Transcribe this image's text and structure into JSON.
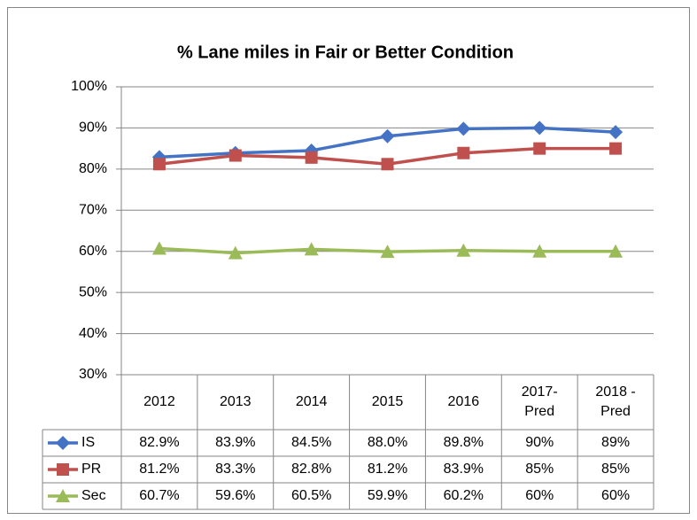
{
  "chart_data": {
    "type": "line",
    "title": "% Lane miles in Fair or Better Condition",
    "categories": [
      "2012",
      "2013",
      "2014",
      "2015",
      "2016",
      "2017- Pred",
      "2018 - Pred"
    ],
    "series": [
      {
        "name": "IS",
        "color": "#4472c4",
        "marker": "diamond",
        "values": [
          82.9,
          83.9,
          84.5,
          88.0,
          89.8,
          90,
          89
        ],
        "value_labels": [
          "82.9%",
          "83.9%",
          "84.5%",
          "88.0%",
          "89.8%",
          "90%",
          "89%"
        ]
      },
      {
        "name": "PR",
        "color": "#c0504d",
        "marker": "square",
        "values": [
          81.2,
          83.3,
          82.8,
          81.2,
          83.9,
          85,
          85
        ],
        "value_labels": [
          "81.2%",
          "83.3%",
          "82.8%",
          "81.2%",
          "83.9%",
          "85%",
          "85%"
        ]
      },
      {
        "name": "Sec",
        "color": "#9bbb59",
        "marker": "triangle",
        "values": [
          60.7,
          59.6,
          60.5,
          59.9,
          60.2,
          60,
          60
        ],
        "value_labels": [
          "60.7%",
          "59.6%",
          "60.5%",
          "59.9%",
          "60.2%",
          "60%",
          "60%"
        ]
      }
    ],
    "ylim": [
      30,
      100
    ],
    "yticks": [
      {
        "value": 30,
        "label": "30%"
      },
      {
        "value": 40,
        "label": "40%"
      },
      {
        "value": 50,
        "label": "50%"
      },
      {
        "value": 60,
        "label": "60%"
      },
      {
        "value": 70,
        "label": "70%"
      },
      {
        "value": 80,
        "label": "80%"
      },
      {
        "value": 90,
        "label": "90%"
      },
      {
        "value": 100,
        "label": "100%"
      }
    ],
    "grid": true
  }
}
